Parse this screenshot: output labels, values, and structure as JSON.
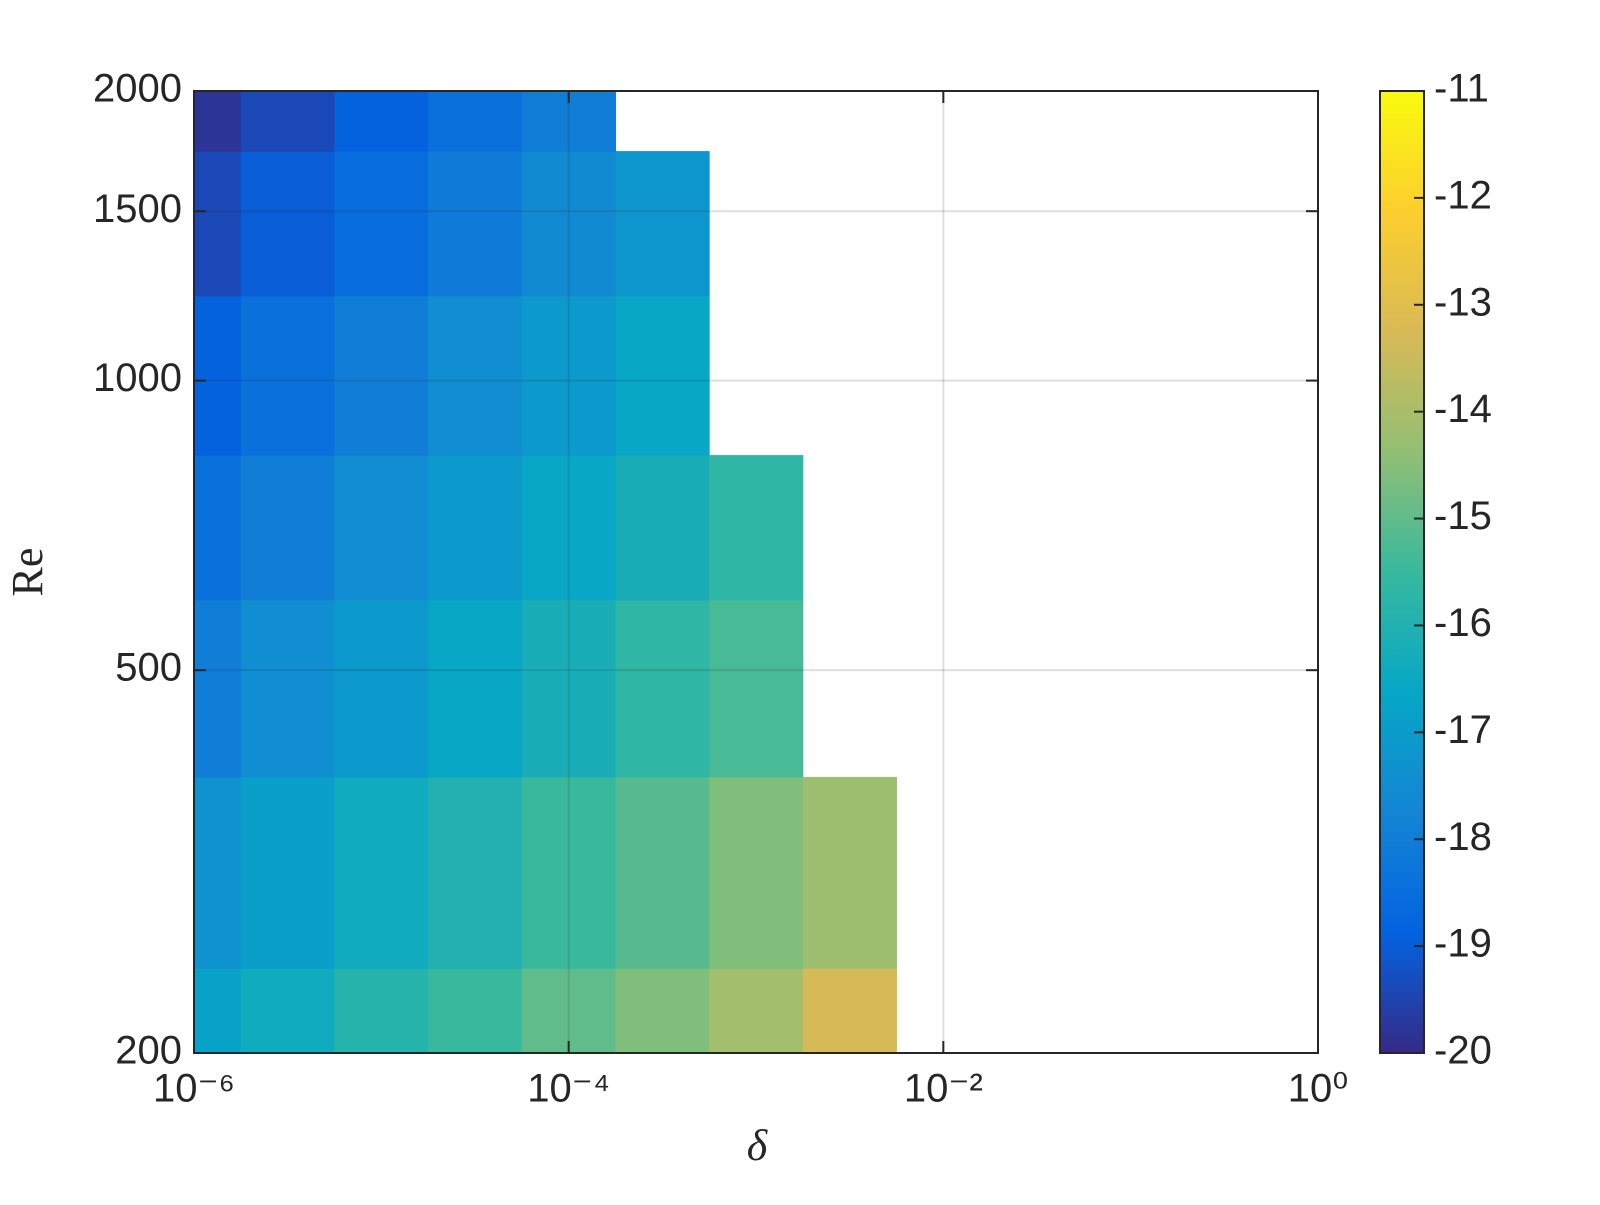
{
  "chart_data": {
    "type": "contour",
    "xlabel": "δ",
    "ylabel": "Re",
    "x": [
      1e-06,
      3.16e-06,
      1e-05,
      3.16e-05,
      0.0001,
      0.000316,
      0.001,
      0.00316,
      0.01
    ],
    "y": [
      200,
      300,
      500,
      700,
      1000,
      1500,
      2000
    ],
    "z": [
      [
        -16.8,
        -16.4,
        -15.9,
        -15.5,
        -15.0,
        -14.6,
        -14.1,
        -13.3,
        null
      ],
      [
        -17.3,
        -16.9,
        -16.4,
        -16.0,
        -15.5,
        -15.1,
        -14.6,
        -14.2,
        null
      ],
      [
        -18.0,
        -17.5,
        -17.1,
        -16.6,
        -16.2,
        -15.7,
        -15.3,
        null,
        null
      ],
      [
        -18.4,
        -18.0,
        -17.5,
        -17.1,
        -16.6,
        -16.2,
        -15.7,
        null,
        null
      ],
      [
        -18.9,
        -18.4,
        -18.0,
        -17.5,
        -17.1,
        -16.6,
        null,
        null,
        null
      ],
      [
        -19.4,
        -19.0,
        -18.5,
        -18.1,
        -17.6,
        -17.2,
        null,
        null,
        null
      ],
      [
        -19.8,
        -19.4,
        -18.9,
        -18.4,
        -18.0,
        null,
        null,
        null,
        null
      ]
    ],
    "xlog": true,
    "ylog": true,
    "xlim": [
      1e-06,
      1
    ],
    "ylim": [
      200,
      2000
    ],
    "xticks": [
      {
        "value": 1e-06,
        "label": "10⁻⁶"
      },
      {
        "value": 0.0001,
        "label": "10⁻⁴"
      },
      {
        "value": 0.01,
        "label": "10⁻²"
      },
      {
        "value": 1,
        "label": "10⁰"
      }
    ],
    "yticks": [
      200,
      500,
      1000,
      1500,
      2000
    ],
    "grid": true,
    "clim": [
      -20,
      -11
    ],
    "cticks": [
      -20,
      -19,
      -18,
      -17,
      -16,
      -15,
      -14,
      -13,
      -12,
      -11
    ],
    "colormap": [
      "#352a87",
      "#0363e1",
      "#1485d4",
      "#06a7c6",
      "#38b99e",
      "#92bf73",
      "#d9ba56",
      "#fcce2e",
      "#f9fb0e"
    ]
  }
}
